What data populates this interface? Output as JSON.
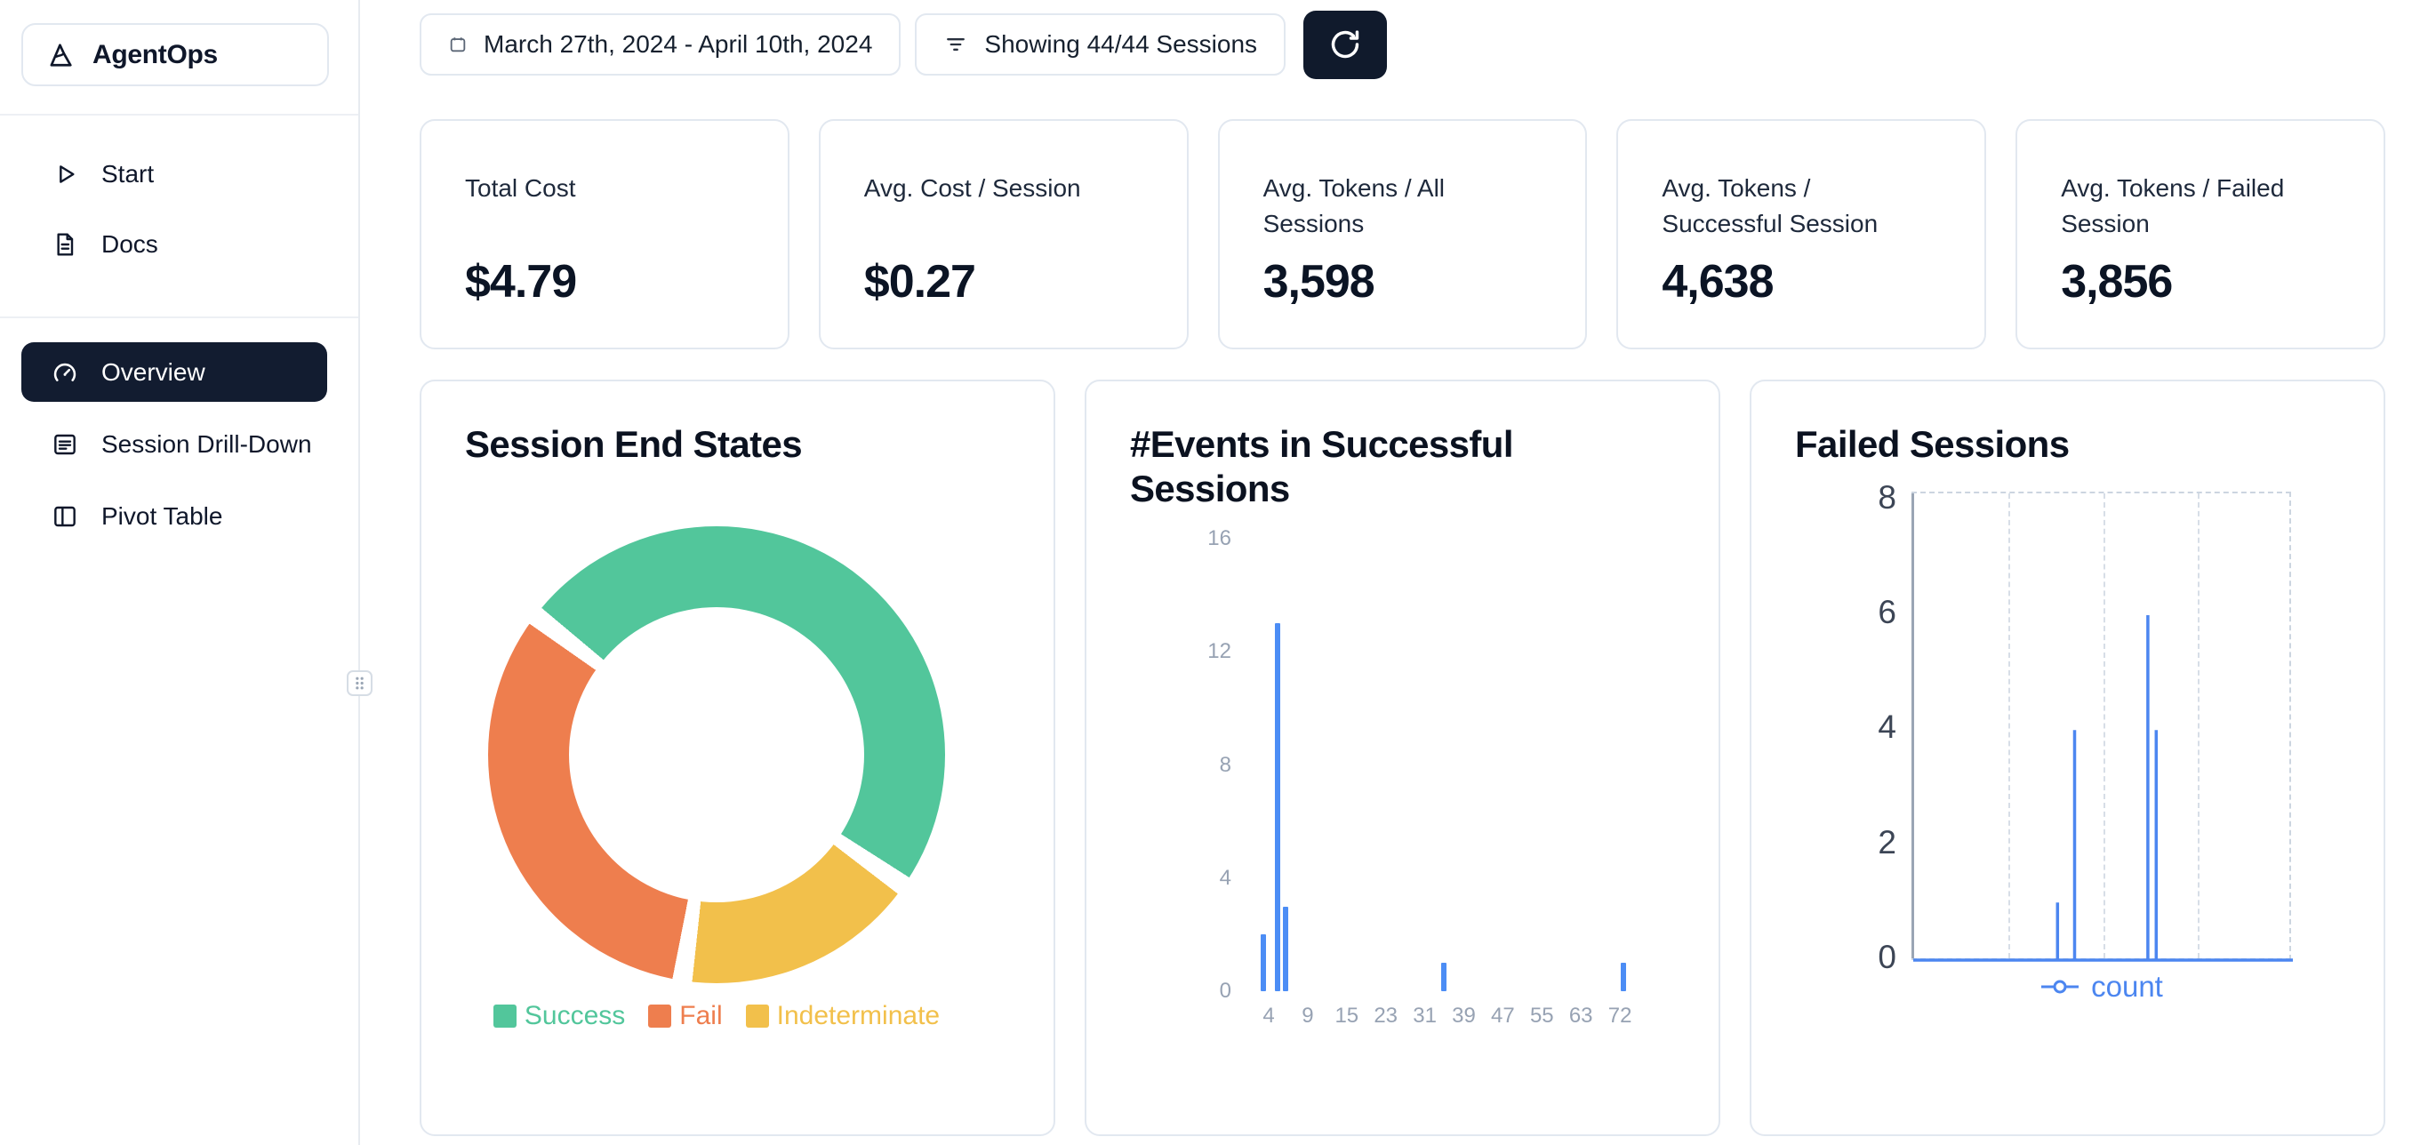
{
  "app": {
    "name": "AgentOps"
  },
  "sidebar": {
    "sections": [
      {
        "items": [
          {
            "label": "Start",
            "icon": "play"
          },
          {
            "label": "Docs",
            "icon": "docs"
          }
        ]
      },
      {
        "items": [
          {
            "label": "Overview",
            "icon": "gauge",
            "active": true
          },
          {
            "label": "Session Drill-Down",
            "icon": "drilldown"
          },
          {
            "label": "Pivot Table",
            "icon": "pivot"
          }
        ]
      }
    ]
  },
  "topbar": {
    "date_range": "March 27th, 2024 - April 10th, 2024",
    "sessions_filter": "Showing 44/44 Sessions"
  },
  "stats": [
    {
      "label": "Total Cost",
      "value": "$4.79"
    },
    {
      "label": "Avg. Cost / Session",
      "value": "$0.27"
    },
    {
      "label": "Avg. Tokens / All Sessions",
      "value": "3,598"
    },
    {
      "label": "Avg. Tokens / Successful Session",
      "value": "4,638"
    },
    {
      "label": "Avg. Tokens / Failed Session",
      "value": "3,856"
    }
  ],
  "chart_data": [
    {
      "type": "pie",
      "title": "Session End States",
      "donut": true,
      "legend_position": "bottom",
      "slices": [
        {
          "label": "Success",
          "value": 50,
          "color": "#52C69B"
        },
        {
          "label": "Fail",
          "value": 33,
          "color": "#EE7E4E"
        },
        {
          "label": "Indeterminate",
          "value": 17,
          "color": "#F2C04B"
        }
      ]
    },
    {
      "type": "bar",
      "title": "#Events in Successful Sessions",
      "color": "#4C8DF5",
      "ylim": [
        0,
        16
      ],
      "yticks": [
        0,
        4,
        8,
        12,
        16
      ],
      "xticks": [
        4,
        9,
        15,
        23,
        31,
        39,
        47,
        55,
        63,
        72
      ],
      "grid": false,
      "bars": [
        {
          "pos": 0.018,
          "value": 2
        },
        {
          "pos": 0.049,
          "value": 13
        },
        {
          "pos": 0.066,
          "value": 3
        },
        {
          "pos": 0.414,
          "value": 1
        },
        {
          "pos": 0.808,
          "value": 1
        }
      ]
    },
    {
      "type": "line",
      "title": "Failed Sessions",
      "ylim": [
        0,
        8
      ],
      "yticks": [
        0,
        2,
        4,
        6,
        8
      ],
      "grid": "dashed",
      "legend_position": "bottom",
      "series": [
        {
          "name": "count",
          "color": "#4C86F0",
          "spikes": [
            {
              "pos": 0.38,
              "value": 1
            },
            {
              "pos": 0.425,
              "value": 4
            },
            {
              "pos": 0.618,
              "value": 6
            },
            {
              "pos": 0.64,
              "value": 4
            }
          ]
        }
      ]
    }
  ]
}
